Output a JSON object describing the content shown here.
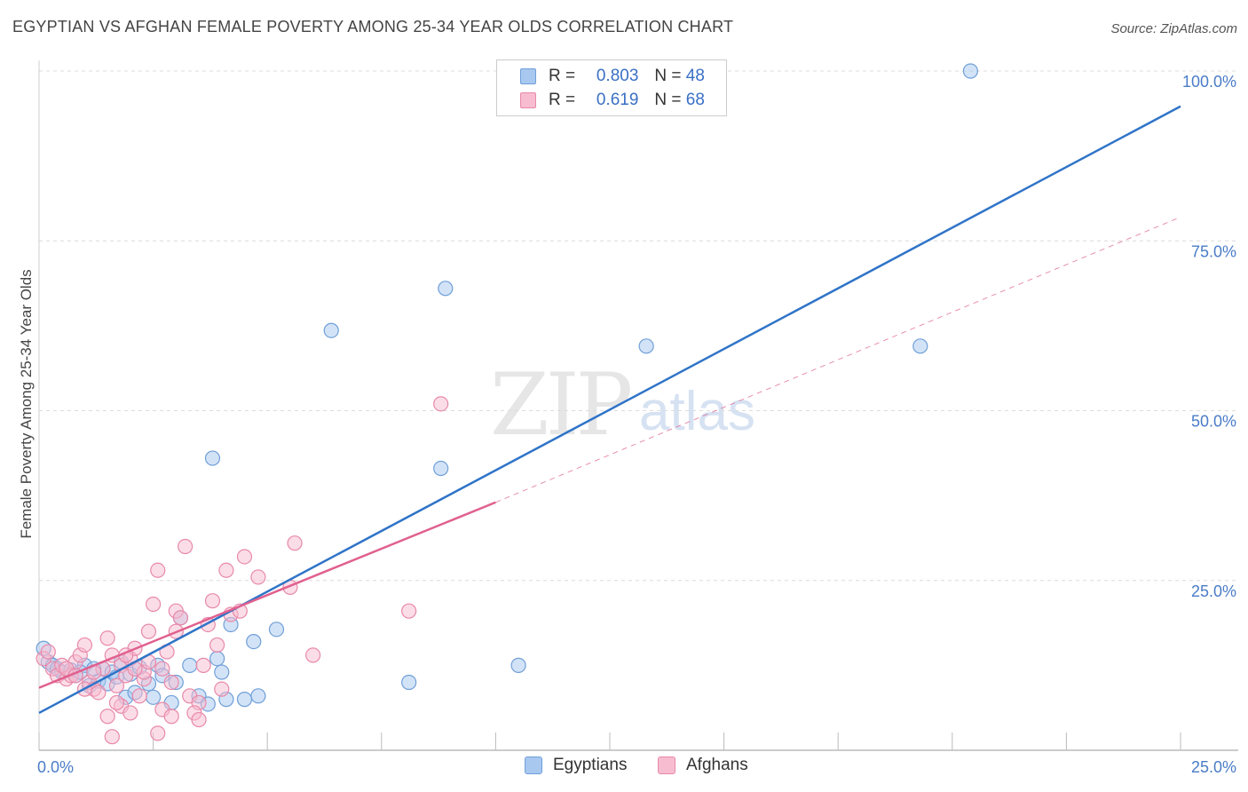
{
  "header": {
    "title": "EGYPTIAN VS AFGHAN FEMALE POVERTY AMONG 25-34 YEAR OLDS CORRELATION CHART",
    "source": "Source: ZipAtlas.com"
  },
  "watermark": {
    "zip": "ZIP",
    "atlas": "atlas"
  },
  "legend": {
    "rows": [
      {
        "r_label": "R =",
        "r_value": "0.803",
        "n_label": "N =",
        "n_value": "48",
        "color": "#a8c8f0",
        "border": "#6f9fd8"
      },
      {
        "r_label": "R =",
        "r_value": "0.619",
        "n_label": "N =",
        "n_value": "68",
        "color": "#f8bcd0",
        "border": "#e889aa"
      }
    ]
  },
  "bottom_legend": [
    {
      "label": "Egyptians",
      "color": "#a8c8f0",
      "border": "#6f9fd8"
    },
    {
      "label": "Afghans",
      "color": "#f8bcd0",
      "border": "#e889aa"
    }
  ],
  "chart_data": {
    "type": "scatter",
    "ylabel": "Female Poverty Among 25-34 Year Olds",
    "xlim": [
      0,
      25
    ],
    "ylim": [
      0,
      100
    ],
    "x_tick_labels": [
      {
        "value": 0,
        "label": "0.0%"
      },
      {
        "value": 25,
        "label": "25.0%"
      }
    ],
    "y_tick_labels": [
      {
        "value": 25,
        "label": "25.0%"
      },
      {
        "value": 50,
        "label": "50.0%"
      },
      {
        "value": 75,
        "label": "75.0%"
      },
      {
        "value": 100,
        "label": "100.0%"
      }
    ],
    "grid": true,
    "series": [
      {
        "name": "Egyptians",
        "color": "#6f9fd8",
        "fill": "#a8c8f0",
        "line_color": "#2f74c8",
        "trend": {
          "x0": 0,
          "y0": 5.5,
          "x1": 25,
          "y1": 94.8
        },
        "points": [
          [
            0.1,
            15.0
          ],
          [
            0.2,
            13.0
          ],
          [
            0.3,
            12.5
          ],
          [
            0.4,
            12.0
          ],
          [
            0.5,
            11.5
          ],
          [
            0.7,
            11.8
          ],
          [
            0.8,
            11.0
          ],
          [
            1.0,
            12.5
          ],
          [
            1.1,
            9.5
          ],
          [
            1.3,
            10.2
          ],
          [
            1.4,
            12.0
          ],
          [
            1.5,
            9.8
          ],
          [
            1.6,
            11.5
          ],
          [
            1.7,
            10.8
          ],
          [
            1.8,
            13.0
          ],
          [
            1.9,
            7.8
          ],
          [
            2.0,
            11.2
          ],
          [
            2.1,
            8.5
          ],
          [
            2.2,
            12.2
          ],
          [
            2.4,
            9.8
          ],
          [
            2.5,
            7.8
          ],
          [
            2.6,
            12.5
          ],
          [
            2.9,
            7.0
          ],
          [
            3.0,
            10.0
          ],
          [
            3.1,
            19.5
          ],
          [
            3.3,
            12.5
          ],
          [
            3.5,
            8.0
          ],
          [
            3.7,
            6.8
          ],
          [
            3.8,
            43.0
          ],
          [
            3.9,
            13.5
          ],
          [
            4.0,
            11.5
          ],
          [
            4.1,
            7.5
          ],
          [
            4.2,
            18.5
          ],
          [
            4.5,
            7.5
          ],
          [
            4.7,
            16.0
          ],
          [
            4.8,
            8.0
          ],
          [
            5.2,
            17.8
          ],
          [
            6.4,
            61.8
          ],
          [
            8.1,
            10.0
          ],
          [
            8.8,
            41.5
          ],
          [
            8.9,
            68.0
          ],
          [
            10.5,
            12.5
          ],
          [
            13.3,
            59.5
          ],
          [
            19.3,
            59.5
          ],
          [
            20.4,
            100.0
          ],
          [
            1.2,
            12.0
          ],
          [
            0.9,
            11.5
          ],
          [
            2.7,
            11.0
          ]
        ]
      },
      {
        "name": "Afghans",
        "color": "#e889aa",
        "fill": "#f8bcd0",
        "line_color": "#e0608e",
        "trend": {
          "x0": 0,
          "y0": 9.2,
          "x1": 10,
          "y1": 36.5
        },
        "trend_ext": {
          "x0": 10,
          "y0": 36.5,
          "x1": 25,
          "y1": 78.5
        },
        "points": [
          [
            0.1,
            13.5
          ],
          [
            0.2,
            14.5
          ],
          [
            0.3,
            12.0
          ],
          [
            0.4,
            11.0
          ],
          [
            0.5,
            12.5
          ],
          [
            0.6,
            10.5
          ],
          [
            0.7,
            11.0
          ],
          [
            0.8,
            13.0
          ],
          [
            0.9,
            14.0
          ],
          [
            1.0,
            15.5
          ],
          [
            1.1,
            10.0
          ],
          [
            1.2,
            9.0
          ],
          [
            1.3,
            8.5
          ],
          [
            1.4,
            12.0
          ],
          [
            1.5,
            16.5
          ],
          [
            1.6,
            14.0
          ],
          [
            1.7,
            9.5
          ],
          [
            1.8,
            12.5
          ],
          [
            1.9,
            11.0
          ],
          [
            2.0,
            13.5
          ],
          [
            2.1,
            15.0
          ],
          [
            2.2,
            8.0
          ],
          [
            2.3,
            10.5
          ],
          [
            2.4,
            17.5
          ],
          [
            2.5,
            21.5
          ],
          [
            2.6,
            26.5
          ],
          [
            2.7,
            12.0
          ],
          [
            2.8,
            14.5
          ],
          [
            2.9,
            10.0
          ],
          [
            3.0,
            20.5
          ],
          [
            3.1,
            19.5
          ],
          [
            3.2,
            30.0
          ],
          [
            3.3,
            8.0
          ],
          [
            3.5,
            7.0
          ],
          [
            3.6,
            12.5
          ],
          [
            3.8,
            22.0
          ],
          [
            3.9,
            15.5
          ],
          [
            4.0,
            9.0
          ],
          [
            4.1,
            26.5
          ],
          [
            4.2,
            20.0
          ],
          [
            4.4,
            20.5
          ],
          [
            4.5,
            28.5
          ],
          [
            4.8,
            25.5
          ],
          [
            5.5,
            24.0
          ],
          [
            5.6,
            30.5
          ],
          [
            6.0,
            14.0
          ],
          [
            8.1,
            20.5
          ],
          [
            8.8,
            51.0
          ],
          [
            1.5,
            5.0
          ],
          [
            1.6,
            2.0
          ],
          [
            1.8,
            6.5
          ],
          [
            2.0,
            5.5
          ],
          [
            2.3,
            11.5
          ],
          [
            2.6,
            2.5
          ],
          [
            2.7,
            6.0
          ],
          [
            2.9,
            5.0
          ],
          [
            3.4,
            5.5
          ],
          [
            3.5,
            4.5
          ],
          [
            1.2,
            11.5
          ],
          [
            0.6,
            12.0
          ],
          [
            2.1,
            12.0
          ],
          [
            1.9,
            14.0
          ],
          [
            3.0,
            17.5
          ],
          [
            1.0,
            9.0
          ],
          [
            0.8,
            11.0
          ],
          [
            2.4,
            13.0
          ],
          [
            1.7,
            7.0
          ],
          [
            3.7,
            18.5
          ]
        ]
      }
    ]
  }
}
